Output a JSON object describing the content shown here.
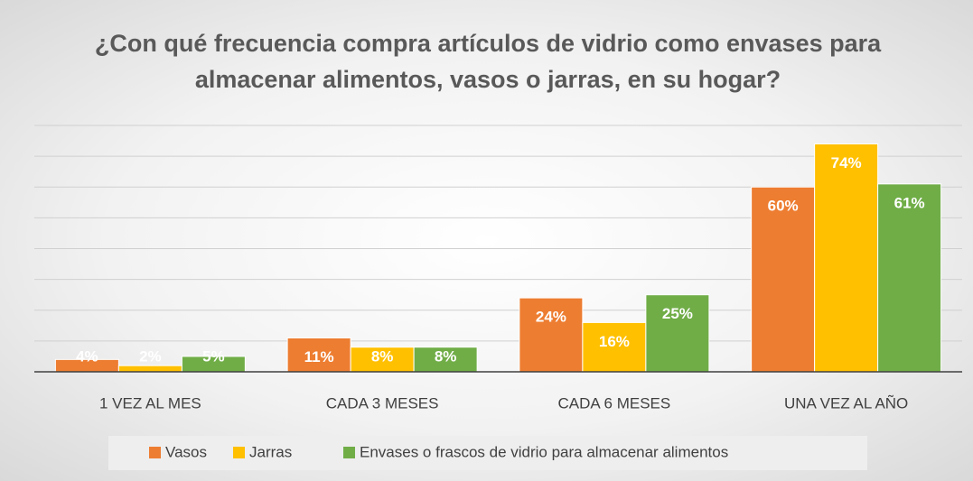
{
  "chart_data": {
    "type": "bar",
    "title": "¿Con qué frecuencia compra artículos de vidrio como envases para almacenar alimentos, vasos o jarras, en su hogar?",
    "categories": [
      "1 VEZ AL MES",
      "CADA 3 MESES",
      "CADA 6 MESES",
      "UNA VEZ AL AÑO"
    ],
    "series": [
      {
        "name": "Vasos",
        "color": "#ed7d31",
        "values": [
          4,
          11,
          24,
          60
        ],
        "value_labels": [
          "4%",
          "11%",
          "24%",
          "60%"
        ]
      },
      {
        "name": "Jarras",
        "color": "#ffc000",
        "values": [
          2,
          8,
          16,
          74
        ],
        "value_labels": [
          "2%",
          "8%",
          "16%",
          "74%"
        ]
      },
      {
        "name": "Envases o frascos de vidrio para almacenar alimentos",
        "color": "#70ad47",
        "values": [
          5,
          8,
          25,
          61
        ],
        "value_labels": [
          "5%",
          "8%",
          "25%",
          "61%"
        ]
      }
    ],
    "ylim": [
      0,
      80
    ],
    "yticks": [
      0,
      10,
      20,
      30,
      40,
      50,
      60,
      70,
      80
    ],
    "grid": true,
    "legend": "bottom"
  }
}
